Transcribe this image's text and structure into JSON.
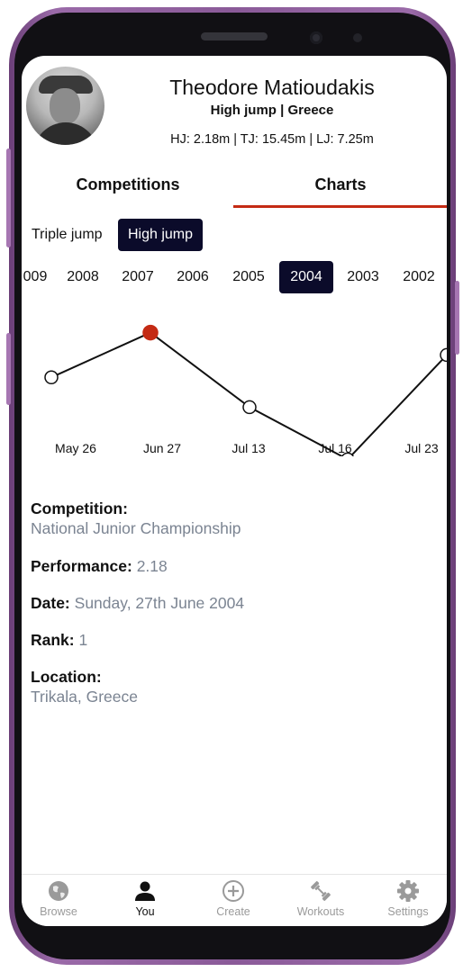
{
  "profile": {
    "name": "Theodore Matioudakis",
    "subtitle": "High jump | Greece",
    "records": "HJ: 2.18m | TJ: 15.45m | LJ: 7.25m"
  },
  "tabs": [
    {
      "label": "Competitions",
      "active": false
    },
    {
      "label": "Charts",
      "active": true
    }
  ],
  "events": [
    {
      "label": "Triple jump",
      "active": false
    },
    {
      "label": "High jump",
      "active": true
    }
  ],
  "years": [
    "009",
    "2008",
    "2007",
    "2006",
    "2005",
    "2004",
    "2003",
    "2002"
  ],
  "selected_year": "2004",
  "chart_data": {
    "type": "line",
    "categories": [
      "May 26",
      "Jun 27",
      "Jul 13",
      "Jul 16",
      "Jul 23"
    ],
    "values": [
      2.12,
      2.18,
      2.08,
      2.01,
      2.15
    ],
    "selected_index": 1,
    "title": "",
    "xlabel": "",
    "ylabel": "",
    "grid": false,
    "colors": {
      "line": "#111111",
      "point_fill": "#ffffff",
      "point_selected": "#c42a14"
    }
  },
  "details": {
    "competition_label": "Competition:",
    "competition_value": "National Junior Championship",
    "performance_label": "Performance:",
    "performance_value": "2.18",
    "date_label": "Date:",
    "date_value": "Sunday, 27th June 2004",
    "rank_label": "Rank:",
    "rank_value": "1",
    "location_label": "Location:",
    "location_value": "Trikala, Greece"
  },
  "bottom_nav": [
    {
      "label": "Browse",
      "icon": "globe-icon",
      "active": false
    },
    {
      "label": "You",
      "icon": "person-icon",
      "active": true
    },
    {
      "label": "Create",
      "icon": "plus-circle-icon",
      "active": false
    },
    {
      "label": "Workouts",
      "icon": "dumbbell-icon",
      "active": false
    },
    {
      "label": "Settings",
      "icon": "gear-icon",
      "active": false
    }
  ],
  "colors": {
    "accent": "#c42a14",
    "selected_bg": "#0b0b2a",
    "muted_text": "#7b8492"
  }
}
